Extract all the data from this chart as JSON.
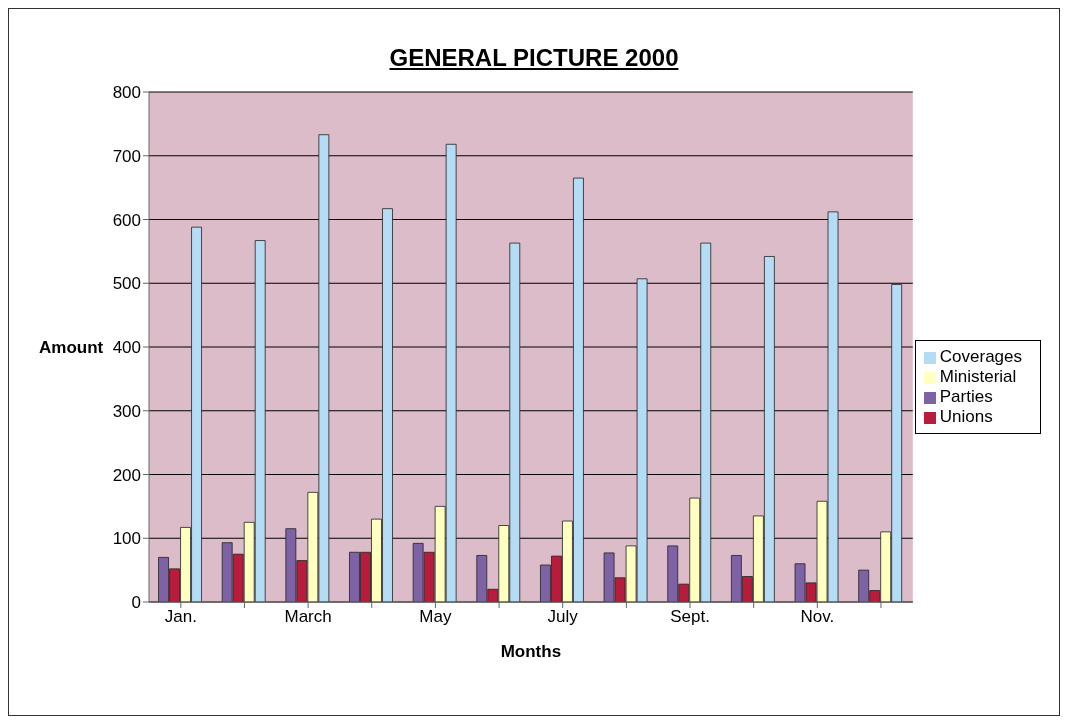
{
  "chart_data": {
    "type": "bar",
    "title": "GENERAL PICTURE 2000",
    "xlabel": "Months",
    "ylabel": "Amount",
    "categories": [
      "Jan.",
      null,
      "March",
      null,
      "May",
      null,
      "July",
      null,
      "Sept.",
      null,
      "Nov.",
      null
    ],
    "series": [
      {
        "name": "Parties",
        "color": "#7e62a6",
        "values": [
          70,
          93,
          115,
          78,
          92,
          73,
          58,
          77,
          88,
          73,
          60,
          50
        ]
      },
      {
        "name": "Unions",
        "color": "#b81c3c",
        "values": [
          52,
          75,
          65,
          78,
          78,
          20,
          72,
          38,
          28,
          40,
          30,
          18
        ]
      },
      {
        "name": "Ministerial",
        "color": "#ffffc0",
        "values": [
          117,
          125,
          172,
          130,
          150,
          120,
          127,
          88,
          163,
          135,
          158,
          110
        ]
      },
      {
        "name": "Coverages",
        "color": "#b4dcf4",
        "values": [
          588,
          567,
          733,
          617,
          718,
          563,
          665,
          507,
          563,
          542,
          612,
          498
        ]
      }
    ],
    "ylim": [
      0,
      800
    ],
    "yticks": [
      0,
      100,
      200,
      300,
      400,
      500,
      600,
      700,
      800
    ],
    "grid": "y",
    "legend": "right"
  }
}
